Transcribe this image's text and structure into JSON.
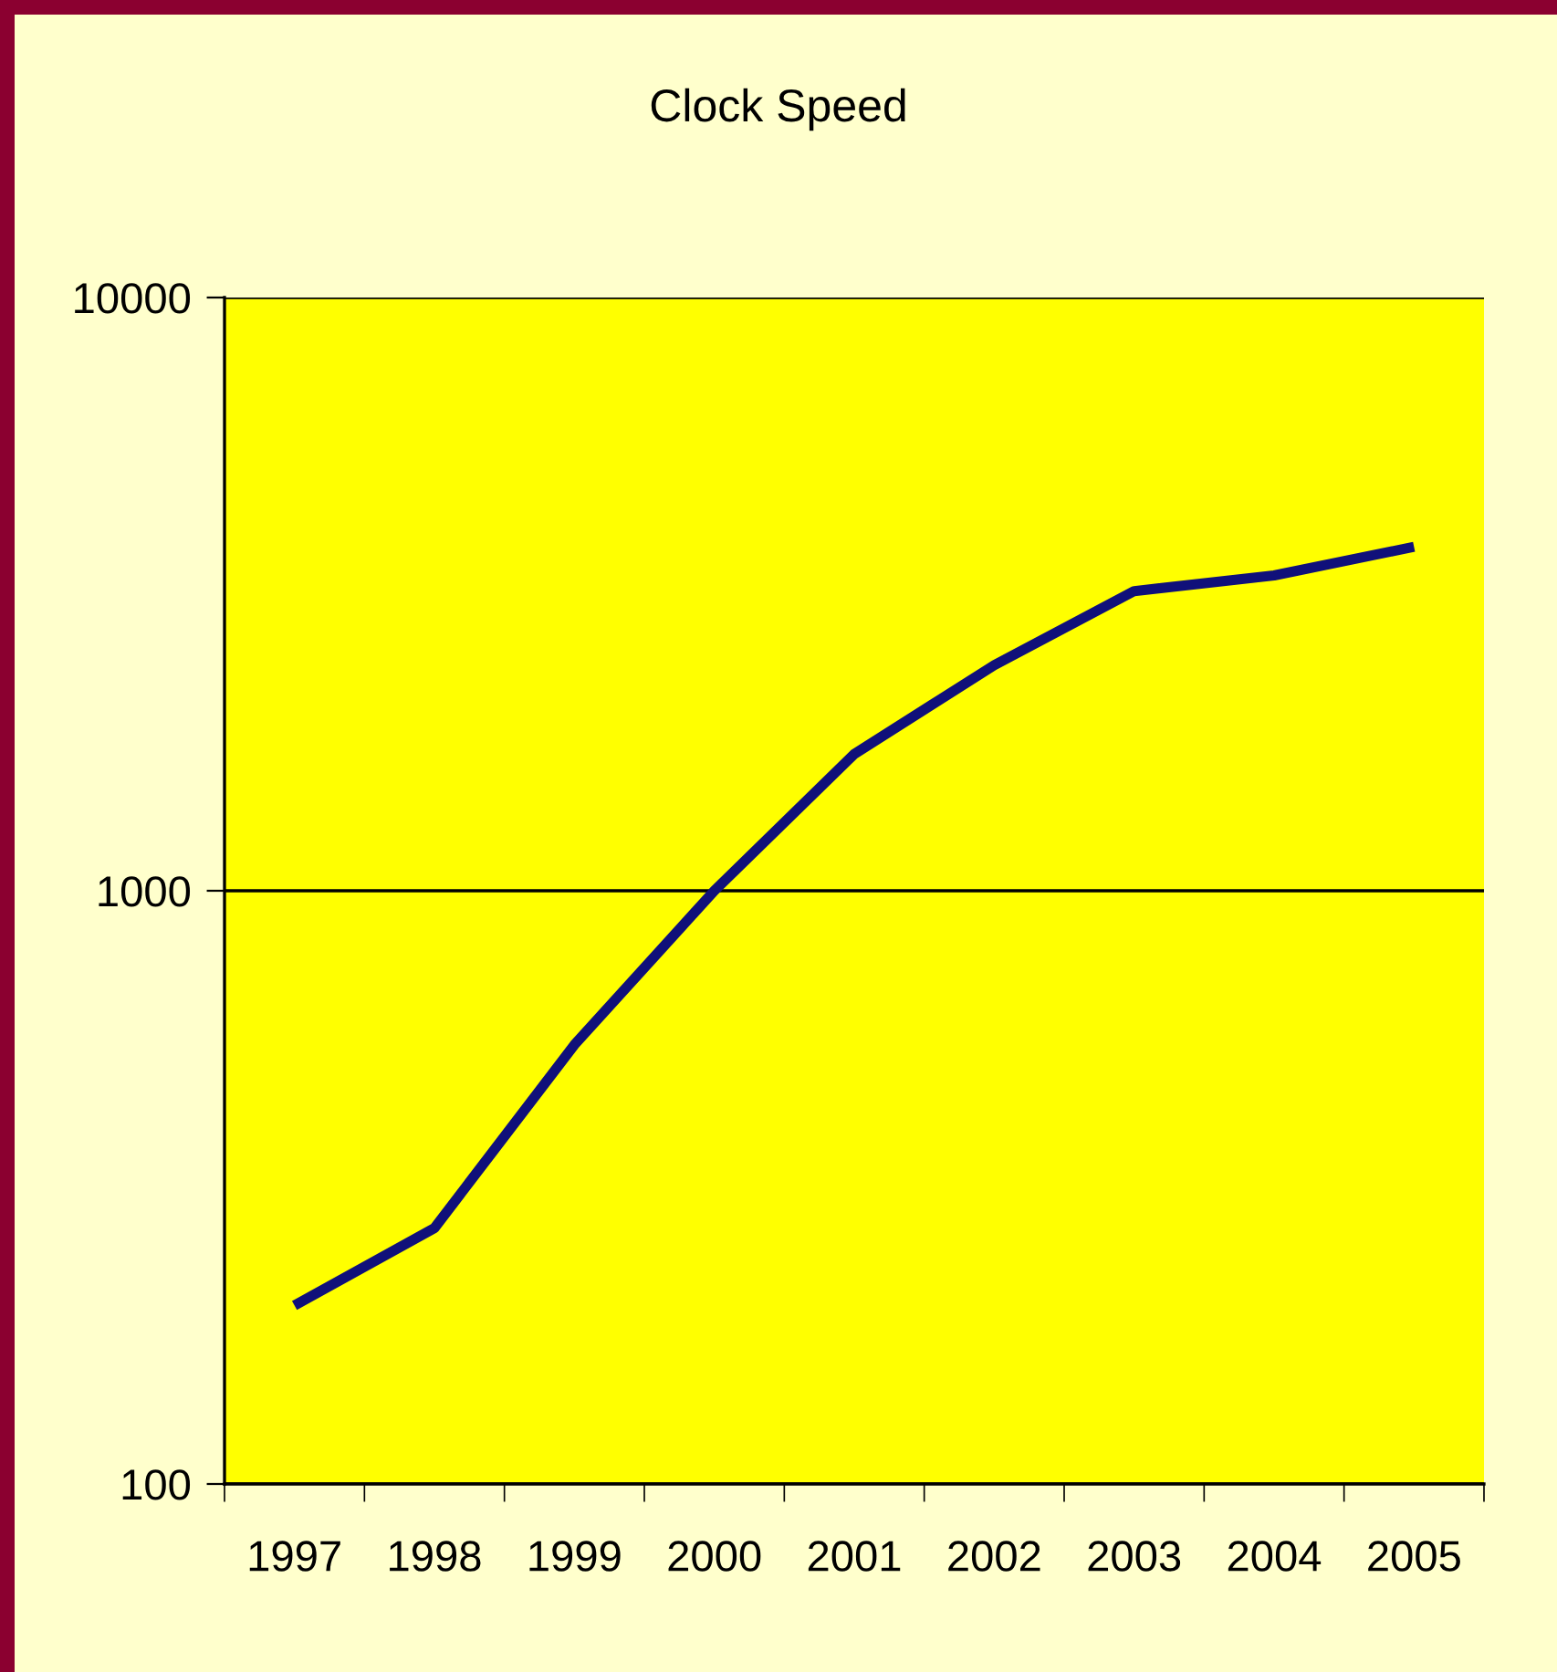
{
  "chart_data": {
    "type": "line",
    "title": "Clock Speed",
    "categories": [
      "1997",
      "1998",
      "1999",
      "2000",
      "2001",
      "2002",
      "2003",
      "2004",
      "2005"
    ],
    "series": [
      {
        "color": "#10107a",
        "values": [
          200,
          270,
          550,
          1000,
          1700,
          2400,
          3200,
          3400,
          3800
        ]
      }
    ],
    "log": "y",
    "ylim": [
      100,
      10000
    ],
    "yticks": [
      100,
      1000,
      10000
    ],
    "grid": "y",
    "marker": "none",
    "line_style": "solid"
  }
}
